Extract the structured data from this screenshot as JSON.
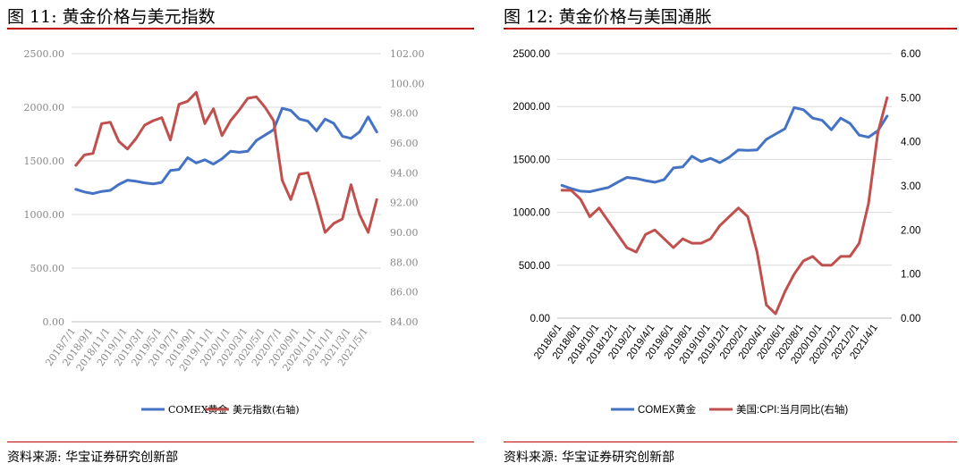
{
  "panels": [
    {
      "title": "图 11:  黄金价格与美元指数",
      "source": "资料来源:  华宝证券研究创新部",
      "chart_data": {
        "type": "line",
        "x": [
          "2018/7/1",
          "2018/8/1",
          "2018/9/1",
          "2018/10/1",
          "2018/11/1",
          "2018/12/1",
          "2019/1/1",
          "2019/2/1",
          "2019/3/1",
          "2019/4/1",
          "2019/5/1",
          "2019/6/1",
          "2019/7/1",
          "2019/8/1",
          "2019/9/1",
          "2019/10/1",
          "2019/11/1",
          "2019/12/1",
          "2020/1/1",
          "2020/2/1",
          "2020/3/1",
          "2020/4/1",
          "2020/5/1",
          "2020/6/1",
          "2020/7/1",
          "2020/8/1",
          "2020/9/1",
          "2020/10/1",
          "2020/11/1",
          "2020/12/1",
          "2021/1/1",
          "2021/2/1",
          "2021/3/1",
          "2021/4/1",
          "2021/5/1",
          "2021/6/1"
        ],
        "xtick_labels": [
          "2018/7/1",
          "2018/9/1",
          "2018/11/1",
          "2019/1/1",
          "2019/3/1",
          "2019/5/1",
          "2019/7/1",
          "2019/9/1",
          "2019/11/1",
          "2020/1/1",
          "2020/3/1",
          "2020/5/1",
          "2020/7/1",
          "2020/9/1",
          "2020/11/1",
          "2021/1/1",
          "2021/3/1",
          "2021/5/1"
        ],
        "y_left": {
          "ylim": [
            0,
            2500
          ],
          "ticks": [
            "0.00",
            "500.00",
            "1000.00",
            "1500.00",
            "2000.00",
            "2500.00"
          ]
        },
        "y_right": {
          "ylim": [
            84,
            102
          ],
          "ticks": [
            "84.00",
            "86.00",
            "88.00",
            "90.00",
            "92.00",
            "94.00",
            "96.00",
            "98.00",
            "100.00",
            "102.00"
          ]
        },
        "series": [
          {
            "name": "COMEX黄金",
            "axis": "left",
            "color": "#4472c4",
            "values": [
              1235,
              1210,
              1195,
              1215,
              1225,
              1280,
              1320,
              1310,
              1295,
              1285,
              1300,
              1410,
              1420,
              1530,
              1480,
              1510,
              1470,
              1520,
              1590,
              1580,
              1590,
              1690,
              1740,
              1790,
              1990,
              1970,
              1890,
              1870,
              1780,
              1890,
              1850,
              1730,
              1710,
              1770,
              1910,
              1770
            ]
          },
          {
            "name": "美元指数(右轴)",
            "axis": "right",
            "color": "#c0504d",
            "values": [
              94.5,
              95.2,
              95.3,
              97.3,
              97.4,
              96.1,
              95.6,
              96.3,
              97.2,
              97.5,
              97.7,
              96.2,
              98.6,
              98.8,
              99.4,
              97.3,
              98.3,
              96.5,
              97.5,
              98.2,
              99.0,
              99.1,
              98.4,
              97.5,
              93.5,
              92.2,
              93.9,
              94.0,
              92.1,
              90.0,
              90.6,
              90.9,
              93.2,
              91.2,
              90.0,
              92.2
            ]
          }
        ]
      }
    },
    {
      "title": "图 12:  黄金价格与美国通胀",
      "source": "资料来源:  华宝证券研究创新部",
      "chart_data": {
        "type": "line",
        "x": [
          "2018/6/1",
          "2018/7/1",
          "2018/8/1",
          "2018/9/1",
          "2018/10/1",
          "2018/11/1",
          "2018/12/1",
          "2019/1/1",
          "2019/2/1",
          "2019/3/1",
          "2019/4/1",
          "2019/5/1",
          "2019/6/1",
          "2019/7/1",
          "2019/8/1",
          "2019/9/1",
          "2019/10/1",
          "2019/11/1",
          "2019/12/1",
          "2020/1/1",
          "2020/2/1",
          "2020/3/1",
          "2020/4/1",
          "2020/5/1",
          "2020/6/1",
          "2020/7/1",
          "2020/8/1",
          "2020/9/1",
          "2020/10/1",
          "2020/11/1",
          "2020/12/1",
          "2021/1/1",
          "2021/2/1",
          "2021/3/1",
          "2021/4/1",
          "2021/5/1"
        ],
        "xtick_labels": [
          "2018/6/1",
          "2018/8/1",
          "2018/10/1",
          "2018/12/1",
          "2019/2/1",
          "2019/4/1",
          "2019/6/1",
          "2019/8/1",
          "2019/10/1",
          "2019/12/1",
          "2020/2/1",
          "2020/4/1",
          "2020/6/1",
          "2020/8/1",
          "2020/10/1",
          "2020/12/1",
          "2021/2/1",
          "2021/4/1"
        ],
        "y_left": {
          "ylim": [
            0,
            2500
          ],
          "ticks": [
            "0.00",
            "500.00",
            "1000.00",
            "1500.00",
            "2000.00",
            "2500.00"
          ]
        },
        "y_right": {
          "ylim": [
            0,
            6
          ],
          "ticks": [
            "0.00",
            "1.00",
            "2.00",
            "3.00",
            "4.00",
            "5.00",
            "6.00"
          ]
        },
        "series": [
          {
            "name": "COMEX黄金",
            "axis": "left",
            "color": "#4472c4",
            "values": [
              1255,
              1225,
              1200,
              1195,
              1215,
              1235,
              1285,
              1330,
              1320,
              1300,
              1285,
              1310,
              1420,
              1430,
              1530,
              1480,
              1510,
              1470,
              1520,
              1590,
              1585,
              1590,
              1690,
              1740,
              1790,
              1990,
              1970,
              1890,
              1870,
              1780,
              1890,
              1840,
              1730,
              1710,
              1770,
              1910
            ]
          },
          {
            "name": "美国:CPI:当月同比(右轴)",
            "axis": "right",
            "color": "#c0504d",
            "values": [
              2.9,
              2.9,
              2.7,
              2.3,
              2.5,
              2.2,
              1.9,
              1.6,
              1.5,
              1.9,
              2.0,
              1.8,
              1.6,
              1.8,
              1.7,
              1.7,
              1.8,
              2.1,
              2.3,
              2.5,
              2.3,
              1.5,
              0.3,
              0.1,
              0.6,
              1.0,
              1.3,
              1.4,
              1.2,
              1.2,
              1.4,
              1.4,
              1.7,
              2.6,
              4.2,
              5.0
            ]
          }
        ]
      }
    }
  ]
}
